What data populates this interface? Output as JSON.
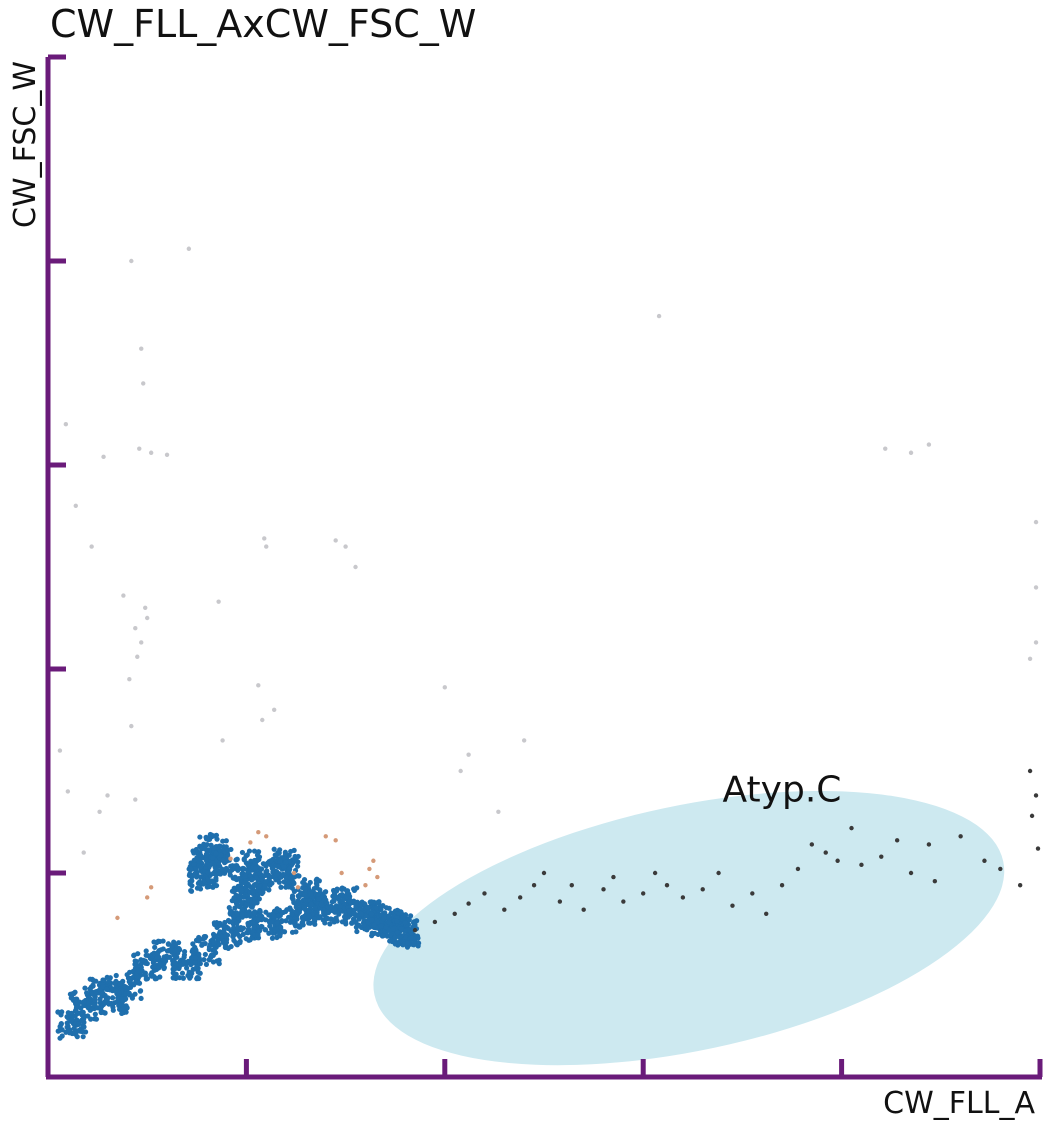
{
  "chart_data": {
    "type": "scatter",
    "title": "CW_FLL_AxCW_FSC_W",
    "xlabel": "CW_FLL_A",
    "ylabel": "CW_FSC_W",
    "xlim": [
      0,
      5
    ],
    "ylim": [
      0,
      5
    ],
    "xticks": [
      1,
      2,
      3,
      4,
      5
    ],
    "yticks": [
      1,
      2,
      3,
      4,
      5
    ],
    "tick_labels_shown": false,
    "grid": false,
    "axis_color": "#6a1b7a",
    "gate": {
      "label": "Atyp.C",
      "shape": "ellipse",
      "center": [
        3.23,
        0.73
      ],
      "radius_x": 1.62,
      "radius_y": 0.6,
      "rotation_deg": -12,
      "fill_color": "#cde9f0"
    },
    "series": [
      {
        "color": "#1f6fad",
        "description_values": "dense main population",
        "values": [
          [
            0.12,
            0.26
          ],
          [
            0.18,
            0.35
          ],
          [
            0.25,
            0.42
          ],
          [
            0.33,
            0.38
          ],
          [
            0.4,
            0.45
          ],
          [
            0.5,
            0.55
          ],
          [
            0.6,
            0.6
          ],
          [
            0.7,
            0.55
          ],
          [
            0.8,
            0.62
          ],
          [
            0.9,
            0.7
          ],
          [
            1.0,
            0.74
          ],
          [
            1.1,
            0.75
          ],
          [
            1.2,
            0.76
          ],
          [
            1.3,
            0.8
          ],
          [
            1.45,
            0.82
          ],
          [
            1.6,
            0.8
          ],
          [
            1.75,
            0.75
          ],
          [
            1.8,
            0.7
          ],
          [
            0.78,
            0.98
          ],
          [
            0.8,
            1.05
          ],
          [
            0.83,
            1.12
          ],
          [
            0.86,
            1.06
          ],
          [
            1.0,
            1.04
          ],
          [
            1.05,
            0.98
          ],
          [
            1.02,
            0.92
          ],
          [
            0.98,
            0.86
          ],
          [
            1.2,
            1.05
          ],
          [
            1.16,
            1.0
          ],
          [
            1.3,
            0.9
          ],
          [
            1.35,
            0.84
          ],
          [
            1.5,
            0.86
          ],
          [
            1.62,
            0.78
          ],
          [
            1.7,
            0.76
          ],
          [
            1.78,
            0.72
          ]
        ]
      },
      {
        "color": "#d59a78",
        "values": [
          [
            0.35,
            0.78
          ],
          [
            0.5,
            0.88
          ],
          [
            0.52,
            0.93
          ],
          [
            0.92,
            1.07
          ],
          [
            1.02,
            1.15
          ],
          [
            1.06,
            1.2
          ],
          [
            1.1,
            1.18
          ],
          [
            1.24,
            1.0
          ],
          [
            1.26,
            0.93
          ],
          [
            1.4,
            1.18
          ],
          [
            1.45,
            1.16
          ],
          [
            1.48,
            1.0
          ],
          [
            1.6,
            0.94
          ],
          [
            1.62,
            1.02
          ],
          [
            1.64,
            1.06
          ],
          [
            1.66,
            0.98
          ]
        ]
      },
      {
        "color": "#c8c8cc",
        "values": [
          [
            0.09,
            3.2
          ],
          [
            0.14,
            2.8
          ],
          [
            0.28,
            3.04
          ],
          [
            0.38,
            2.36
          ],
          [
            0.41,
            1.95
          ],
          [
            0.42,
            1.72
          ],
          [
            0.44,
            1.36
          ],
          [
            0.44,
            2.2
          ],
          [
            0.45,
            2.06
          ],
          [
            0.47,
            2.13
          ],
          [
            0.49,
            2.3
          ],
          [
            0.5,
            2.25
          ],
          [
            0.52,
            3.06
          ],
          [
            0.46,
            3.08
          ],
          [
            0.42,
            4.0
          ],
          [
            0.47,
            3.57
          ],
          [
            0.48,
            3.4
          ],
          [
            0.6,
            3.05
          ],
          [
            0.71,
            4.06
          ],
          [
            0.86,
            2.33
          ],
          [
            0.88,
            1.65
          ],
          [
            1.06,
            1.92
          ],
          [
            1.08,
            1.75
          ],
          [
            1.09,
            2.64
          ],
          [
            1.1,
            2.6
          ],
          [
            1.14,
            1.8
          ],
          [
            1.45,
            2.63
          ],
          [
            1.5,
            2.6
          ],
          [
            1.55,
            2.5
          ],
          [
            2.0,
            1.91
          ],
          [
            2.08,
            1.5
          ],
          [
            2.12,
            1.58
          ],
          [
            2.27,
            1.3
          ],
          [
            2.4,
            1.65
          ],
          [
            3.08,
            3.73
          ],
          [
            4.22,
            3.08
          ],
          [
            4.35,
            3.06
          ],
          [
            4.44,
            3.1
          ],
          [
            4.98,
            2.72
          ],
          [
            4.98,
            2.4
          ],
          [
            4.98,
            2.13
          ],
          [
            4.95,
            2.05
          ],
          [
            0.06,
            1.6
          ],
          [
            0.1,
            1.4
          ],
          [
            0.18,
            1.1
          ],
          [
            0.26,
            1.3
          ],
          [
            0.3,
            1.38
          ],
          [
            0.22,
            2.6
          ]
        ]
      },
      {
        "color": "#3a3a3a",
        "values": [
          [
            1.85,
            0.72
          ],
          [
            1.95,
            0.76
          ],
          [
            2.05,
            0.8
          ],
          [
            2.12,
            0.85
          ],
          [
            2.2,
            0.9
          ],
          [
            2.3,
            0.82
          ],
          [
            2.38,
            0.88
          ],
          [
            2.45,
            0.94
          ],
          [
            2.5,
            1.0
          ],
          [
            2.58,
            0.86
          ],
          [
            2.64,
            0.94
          ],
          [
            2.7,
            0.82
          ],
          [
            2.8,
            0.92
          ],
          [
            2.85,
            0.98
          ],
          [
            2.9,
            0.86
          ],
          [
            3.0,
            0.9
          ],
          [
            3.06,
            1.0
          ],
          [
            3.12,
            0.94
          ],
          [
            3.2,
            0.88
          ],
          [
            3.3,
            0.92
          ],
          [
            3.38,
            1.0
          ],
          [
            3.45,
            0.84
          ],
          [
            3.55,
            0.9
          ],
          [
            3.62,
            0.8
          ],
          [
            3.7,
            0.94
          ],
          [
            3.78,
            1.02
          ],
          [
            3.85,
            1.14
          ],
          [
            3.92,
            1.1
          ],
          [
            3.98,
            1.06
          ],
          [
            4.05,
            1.22
          ],
          [
            4.1,
            1.04
          ],
          [
            4.2,
            1.08
          ],
          [
            4.28,
            1.16
          ],
          [
            4.35,
            1.0
          ],
          [
            4.44,
            1.14
          ],
          [
            4.47,
            0.96
          ],
          [
            4.6,
            1.18
          ],
          [
            4.72,
            1.06
          ],
          [
            4.8,
            1.02
          ],
          [
            4.9,
            0.94
          ],
          [
            4.96,
            1.28
          ],
          [
            4.98,
            1.38
          ],
          [
            4.95,
            1.5
          ],
          [
            4.99,
            1.12
          ]
        ]
      }
    ]
  }
}
